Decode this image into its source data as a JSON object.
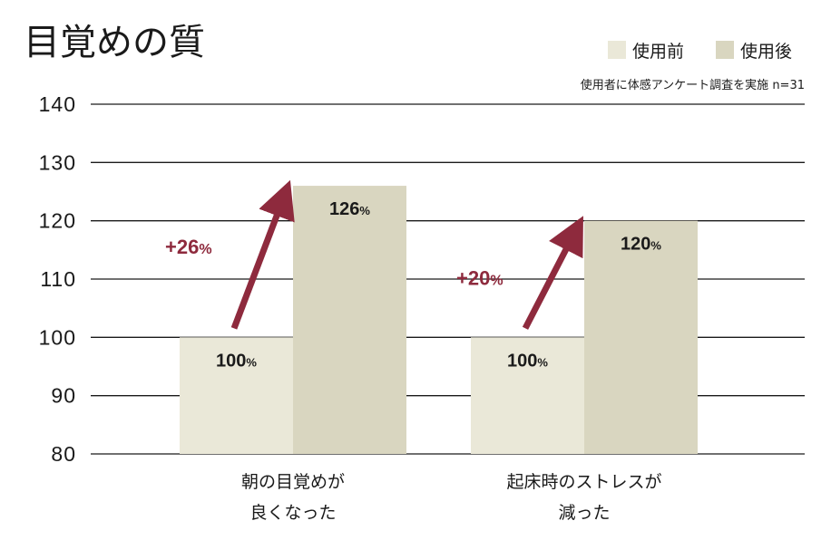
{
  "chart_data": {
    "type": "bar",
    "title": "目覚めの質",
    "note": "使用者に体感アンケート調査を実施 n=31",
    "categories": [
      [
        "朝の目覚めが",
        "良くなった"
      ],
      [
        "起床時のストレスが",
        "減った"
      ]
    ],
    "series": [
      {
        "name": "使用前",
        "values": [
          100,
          100
        ],
        "labels": [
          "100",
          "100"
        ],
        "color": "#eae8d8"
      },
      {
        "name": "使用後",
        "values": [
          126,
          120
        ],
        "labels": [
          "126",
          "120"
        ],
        "color": "#d9d6c0"
      }
    ],
    "unit": "%",
    "deltas": [
      "+26",
      "+20"
    ],
    "arrow_color": "#8e2a3d",
    "ylim": [
      80,
      140
    ],
    "yticks": [
      80,
      90,
      100,
      110,
      120,
      130,
      140
    ],
    "legend_position": "top-right",
    "grid": true
  }
}
